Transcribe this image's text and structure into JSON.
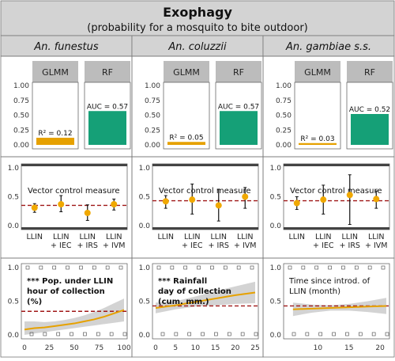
{
  "header": {
    "title": "Exophagy",
    "subtitle": "(probability for a mosquito to bite outdoor)"
  },
  "colors": {
    "header_bg": "#d3d3d3",
    "glmm": "#e6a100",
    "rf": "#15a077",
    "dots": "#f0a800",
    "threshold": "#a01818",
    "trend": "#e6a100",
    "ribbon": "#c8c8c8",
    "strip": "#bcbcbc"
  },
  "chart_data": [
    {
      "type": "bar",
      "species": "An. funestus",
      "ylim": [
        0,
        1
      ],
      "yticks": [
        "0.00",
        "0.25",
        "0.50",
        "0.75",
        "1.00"
      ],
      "panels": [
        {
          "label": "GLMM",
          "metric": "R² = 0.12",
          "value": 0.12
        },
        {
          "label": "RF",
          "metric": "AUC = 0.57",
          "value": 0.57
        }
      ]
    },
    {
      "type": "bar",
      "species": "An. coluzzii",
      "ylim": [
        0,
        1
      ],
      "yticks": [
        "0.00",
        "0.25",
        "0.50",
        "0.75",
        "1.00"
      ],
      "panels": [
        {
          "label": "GLMM",
          "metric": "R² = 0.05",
          "value": 0.05
        },
        {
          "label": "RF",
          "metric": "AUC = 0.57",
          "value": 0.57
        }
      ]
    },
    {
      "type": "bar",
      "species": "An. gambiae s.s.",
      "ylim": [
        0,
        1
      ],
      "yticks": [
        "0.00",
        "0.25",
        "0.50",
        "0.75",
        "1.00"
      ],
      "panels": [
        {
          "label": "GLMM",
          "metric": "R² = 0.03",
          "value": 0.03
        },
        {
          "label": "RF",
          "metric": "AUC = 0.52",
          "value": 0.52
        }
      ]
    },
    {
      "type": "scatter",
      "species": "An. funestus",
      "annotation": "Vector control measure",
      "categories": [
        "LLIN",
        "LLIN\n+ IEC",
        "LLIN\n+ IRS",
        "LLIN\n+ IVM"
      ],
      "values": [
        0.31,
        0.37,
        0.22,
        0.37
      ],
      "lower": [
        0.23,
        0.24,
        0.09,
        0.27
      ],
      "upper": [
        0.38,
        0.52,
        0.36,
        0.46
      ],
      "hline": 0.35,
      "ylim": [
        0,
        1
      ],
      "yticks": [
        "0.0",
        "0.5",
        "1.0"
      ]
    },
    {
      "type": "scatter",
      "species": "An. coluzzii",
      "annotation": "Vector control measure",
      "categories": [
        "LLIN",
        "LLIN\n+ IEC",
        "LLIN\n+ IRS",
        "LLIN\n+ IVM"
      ],
      "values": [
        0.42,
        0.45,
        0.35,
        0.5
      ],
      "lower": [
        0.3,
        0.2,
        0.08,
        0.3
      ],
      "upper": [
        0.52,
        0.72,
        0.63,
        0.66
      ],
      "hline": 0.43,
      "ylim": [
        0,
        1
      ],
      "yticks": [
        "0.0",
        "0.5",
        "1.0"
      ]
    },
    {
      "type": "scatter",
      "species": "An. gambiae s.s.",
      "annotation": "Vector control measure",
      "categories": [
        "LLIN",
        "LLIN\n+ IEC",
        "LLIN\n+ IRS",
        "LLIN\n+ IVM"
      ],
      "values": [
        0.39,
        0.45,
        0.53,
        0.46
      ],
      "lower": [
        0.28,
        0.2,
        0.02,
        0.3
      ],
      "upper": [
        0.5,
        0.7,
        0.88,
        0.6
      ],
      "hline": 0.43,
      "ylim": [
        0,
        1
      ],
      "yticks": [
        "0.0",
        "0.5",
        "1.0"
      ]
    },
    {
      "type": "line",
      "species": "An. funestus",
      "annotation": [
        "*** Pop. under LLIN",
        "hour of collection",
        "(%)"
      ],
      "x": [
        0,
        10,
        20,
        30,
        40,
        50,
        60,
        70,
        80,
        90,
        100
      ],
      "y": [
        0.08,
        0.1,
        0.11,
        0.13,
        0.15,
        0.17,
        0.2,
        0.23,
        0.27,
        0.32,
        0.37
      ],
      "lower": [
        0.0,
        0.02,
        0.04,
        0.06,
        0.08,
        0.1,
        0.12,
        0.14,
        0.16,
        0.18,
        0.2
      ],
      "upper": [
        0.2,
        0.2,
        0.19,
        0.2,
        0.22,
        0.25,
        0.29,
        0.34,
        0.4,
        0.47,
        0.54
      ],
      "hline": 0.35,
      "xlim": [
        0,
        100
      ],
      "xticks": [
        0,
        25,
        50,
        75,
        100
      ],
      "ylim": [
        0,
        1
      ],
      "yticks": [
        "0.0",
        "0.5",
        "1.0"
      ]
    },
    {
      "type": "line",
      "species": "An. coluzzii",
      "annotation": [
        "*** Rainfall",
        "day of collection",
        "(cum. mm.)"
      ],
      "x": [
        0,
        5,
        10,
        15,
        20,
        25
      ],
      "y": [
        0.4,
        0.44,
        0.49,
        0.54,
        0.59,
        0.63
      ],
      "lower": [
        0.32,
        0.38,
        0.42,
        0.44,
        0.46,
        0.47
      ],
      "upper": [
        0.48,
        0.5,
        0.57,
        0.65,
        0.72,
        0.79
      ],
      "hline": 0.43,
      "xlim": [
        0,
        25
      ],
      "xticks": [
        0,
        5,
        10,
        15,
        20,
        25
      ],
      "ylim": [
        0,
        1
      ],
      "yticks": [
        "0.0",
        "0.5",
        "1.0"
      ]
    },
    {
      "type": "line",
      "species": "An. gambiae s.s.",
      "annotation": [
        "Time since introd. of",
        "LLIN (month)"
      ],
      "x": [
        6,
        9,
        12,
        15,
        18,
        21
      ],
      "y": [
        0.38,
        0.39,
        0.4,
        0.41,
        0.42,
        0.43
      ],
      "lower": [
        0.28,
        0.33,
        0.36,
        0.36,
        0.34,
        0.31
      ],
      "upper": [
        0.48,
        0.45,
        0.44,
        0.46,
        0.5,
        0.55
      ],
      "hline": 0.43,
      "xlim": [
        5,
        21
      ],
      "xticks": [
        10,
        15,
        20
      ],
      "ylim": [
        0,
        1
      ],
      "yticks": [
        "0.0",
        "0.5",
        "1.0"
      ]
    }
  ]
}
